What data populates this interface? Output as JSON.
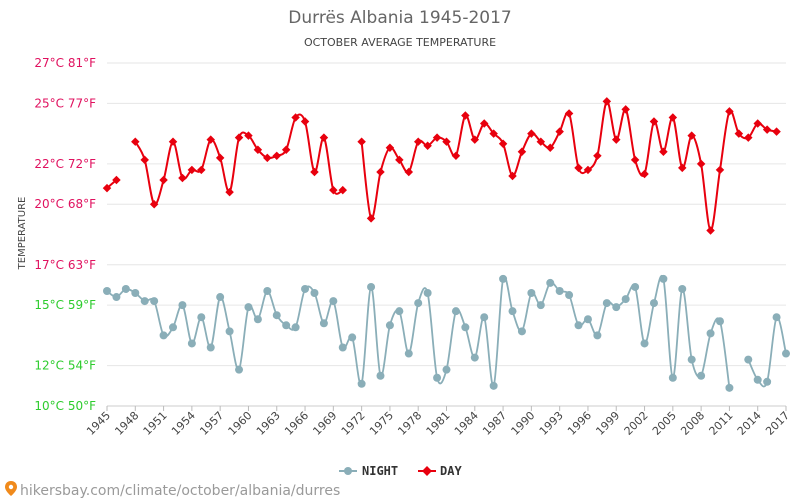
{
  "chart_data": {
    "type": "line",
    "title": "Durrës Albania 1945-2017",
    "subtitle": "OCTOBER AVERAGE TEMPERATURE",
    "ylabel": "TEMPERATURE",
    "ylim": [
      10,
      27
    ],
    "y_ticks": [
      {
        "value": 10,
        "label": "10°C 50°F",
        "color": "#2ecc2e"
      },
      {
        "value": 12,
        "label": "12°C 54°F",
        "color": "#2ecc2e"
      },
      {
        "value": 15,
        "label": "15°C 59°F",
        "color": "#2ecc2e"
      },
      {
        "value": 17,
        "label": "17°C 63°F",
        "color": "#e0115f"
      },
      {
        "value": 20,
        "label": "20°C 68°F",
        "color": "#e0115f"
      },
      {
        "value": 22,
        "label": "22°C 72°F",
        "color": "#e0115f"
      },
      {
        "value": 25,
        "label": "25°C 77°F",
        "color": "#e0115f"
      },
      {
        "value": 27,
        "label": "27°C 81°F",
        "color": "#e0115f"
      }
    ],
    "x_ticks": [
      1945,
      1948,
      1951,
      1954,
      1957,
      1960,
      1963,
      1966,
      1969,
      1972,
      1975,
      1978,
      1981,
      1984,
      1987,
      1990,
      1993,
      1996,
      1999,
      2002,
      2005,
      2008,
      2011,
      2014,
      2017
    ],
    "xlim": [
      1945,
      2017
    ],
    "grid": true,
    "legend_position": "bottom-center",
    "series": [
      {
        "name": "NIGHT",
        "color": "#8aaeb8",
        "points": [
          [
            1945,
            15.7
          ],
          [
            1946,
            15.4
          ],
          [
            1947,
            15.8
          ],
          [
            1948,
            15.6
          ],
          [
            1949,
            15.2
          ],
          [
            1950,
            15.2
          ],
          [
            1951,
            13.5
          ],
          [
            1952,
            13.9
          ],
          [
            1953,
            15.0
          ],
          [
            1954,
            13.1
          ],
          [
            1955,
            14.4
          ],
          [
            1956,
            12.9
          ],
          [
            1957,
            15.4
          ],
          [
            1958,
            13.7
          ],
          [
            1959,
            11.8
          ],
          [
            1960,
            14.9
          ],
          [
            1961,
            14.3
          ],
          [
            1962,
            15.7
          ],
          [
            1963,
            14.5
          ],
          [
            1964,
            14.0
          ],
          [
            1965,
            13.9
          ],
          [
            1966,
            15.8
          ],
          [
            1967,
            15.6
          ],
          [
            1968,
            14.1
          ],
          [
            1969,
            15.2
          ],
          [
            1970,
            12.9
          ],
          [
            1971,
            13.4
          ],
          [
            1972,
            11.1
          ],
          [
            1973,
            15.9
          ],
          [
            1974,
            11.5
          ],
          [
            1975,
            14.0
          ],
          [
            1976,
            14.7
          ],
          [
            1977,
            12.6
          ],
          [
            1978,
            15.1
          ],
          [
            1979,
            15.6
          ],
          [
            1980,
            11.4
          ],
          [
            1981,
            11.8
          ],
          [
            1982,
            14.7
          ],
          [
            1983,
            13.9
          ],
          [
            1984,
            12.4
          ],
          [
            1985,
            14.4
          ],
          [
            1986,
            11.0
          ],
          [
            1987,
            16.3
          ],
          [
            1988,
            14.7
          ],
          [
            1989,
            13.7
          ],
          [
            1990,
            15.6
          ],
          [
            1991,
            15.0
          ],
          [
            1992,
            16.1
          ],
          [
            1993,
            15.7
          ],
          [
            1994,
            15.5
          ],
          [
            1995,
            14.0
          ],
          [
            1996,
            14.3
          ],
          [
            1997,
            13.5
          ],
          [
            1998,
            15.1
          ],
          [
            1999,
            14.9
          ],
          [
            2000,
            15.3
          ],
          [
            2001,
            15.9
          ],
          [
            2002,
            13.1
          ],
          [
            2003,
            15.1
          ],
          [
            2004,
            16.3
          ],
          [
            2005,
            11.4
          ],
          [
            2006,
            15.8
          ],
          [
            2007,
            12.3
          ],
          [
            2008,
            11.5
          ],
          [
            2009,
            13.6
          ],
          [
            2010,
            14.2
          ],
          [
            2011,
            10.9
          ],
          [
            2012,
            null
          ],
          [
            2013,
            12.3
          ],
          [
            2014,
            11.3
          ],
          [
            2015,
            11.2
          ],
          [
            2016,
            14.4
          ],
          [
            2017,
            12.6
          ]
        ]
      },
      {
        "name": "DAY",
        "color": "#e8000e",
        "points": [
          [
            1945,
            20.8
          ],
          [
            1946,
            21.2
          ],
          [
            1947,
            null
          ],
          [
            1948,
            23.1
          ],
          [
            1949,
            22.2
          ],
          [
            1950,
            20.0
          ],
          [
            1951,
            21.2
          ],
          [
            1952,
            23.1
          ],
          [
            1953,
            21.3
          ],
          [
            1954,
            21.7
          ],
          [
            1955,
            21.7
          ],
          [
            1956,
            23.2
          ],
          [
            1957,
            22.3
          ],
          [
            1958,
            20.6
          ],
          [
            1959,
            23.3
          ],
          [
            1960,
            23.4
          ],
          [
            1961,
            22.7
          ],
          [
            1962,
            22.3
          ],
          [
            1963,
            22.4
          ],
          [
            1964,
            22.7
          ],
          [
            1965,
            24.3
          ],
          [
            1966,
            24.1
          ],
          [
            1967,
            21.6
          ],
          [
            1968,
            23.3
          ],
          [
            1969,
            20.7
          ],
          [
            1970,
            20.7
          ],
          [
            1971,
            null
          ],
          [
            1972,
            23.1
          ],
          [
            1973,
            19.3
          ],
          [
            1974,
            21.6
          ],
          [
            1975,
            22.8
          ],
          [
            1976,
            22.2
          ],
          [
            1977,
            21.6
          ],
          [
            1978,
            23.1
          ],
          [
            1979,
            22.9
          ],
          [
            1980,
            23.3
          ],
          [
            1981,
            23.1
          ],
          [
            1982,
            22.4
          ],
          [
            1983,
            24.4
          ],
          [
            1984,
            23.2
          ],
          [
            1985,
            24.0
          ],
          [
            1986,
            23.5
          ],
          [
            1987,
            23.0
          ],
          [
            1988,
            21.4
          ],
          [
            1989,
            22.6
          ],
          [
            1990,
            23.5
          ],
          [
            1991,
            23.1
          ],
          [
            1992,
            22.8
          ],
          [
            1993,
            23.6
          ],
          [
            1994,
            24.5
          ],
          [
            1995,
            21.8
          ],
          [
            1996,
            21.7
          ],
          [
            1997,
            22.4
          ],
          [
            1998,
            25.1
          ],
          [
            1999,
            23.2
          ],
          [
            2000,
            24.7
          ],
          [
            2001,
            22.2
          ],
          [
            2002,
            21.5
          ],
          [
            2003,
            24.1
          ],
          [
            2004,
            22.6
          ],
          [
            2005,
            24.3
          ],
          [
            2006,
            21.8
          ],
          [
            2007,
            23.4
          ],
          [
            2008,
            22.0
          ],
          [
            2009,
            18.7
          ],
          [
            2010,
            21.7
          ],
          [
            2011,
            24.6
          ],
          [
            2012,
            23.5
          ],
          [
            2013,
            23.3
          ],
          [
            2014,
            24.0
          ],
          [
            2015,
            23.7
          ],
          [
            2016,
            23.6
          ],
          [
            2017,
            null
          ]
        ]
      }
    ]
  },
  "watermark": "hikersbay.com/climate/october/albania/durres"
}
